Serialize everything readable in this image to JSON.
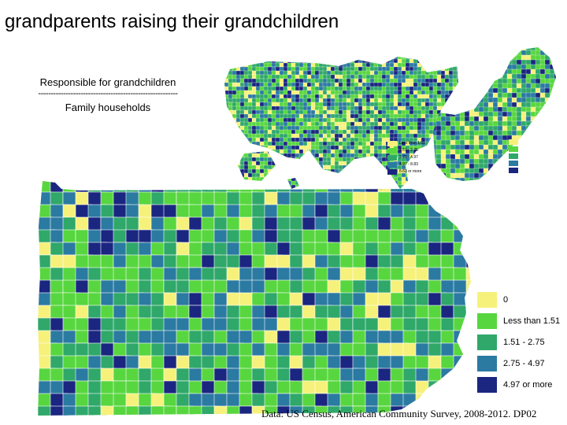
{
  "title": "grandparents raising their grandchildren",
  "ratio": {
    "numerator": "Responsible for grandchildren",
    "denominator": "Family households"
  },
  "colors": {
    "c0": "#f6f17b",
    "c1": "#58d63f",
    "c2": "#2fa86a",
    "c3": "#2b7aa2",
    "c4": "#1a2680",
    "background": "#ffffff"
  },
  "legend_pa": {
    "items": [
      {
        "label": "0",
        "color": "#f6f17b"
      },
      {
        "label": "Less than 1.51",
        "color": "#58d63f"
      },
      {
        "label": "1.51 - 2.75",
        "color": "#2fa86a"
      },
      {
        "label": "2.75 - 4.97",
        "color": "#2b7aa2"
      },
      {
        "label": "4.97 or more",
        "color": "#1a2680"
      }
    ]
  },
  "legend_us": {
    "items": [
      {
        "label": "Less than 1.51",
        "color": "#f6f17b"
      },
      {
        "label": "1.51 - 2.75",
        "color": "#58d63f"
      },
      {
        "label": "2.75 - 4.97",
        "color": "#2fa86a"
      },
      {
        "label": "4.97 - 8.83",
        "color": "#2b7aa2"
      },
      {
        "label": "8.83 or more",
        "color": "#1a2680"
      }
    ]
  },
  "source": "Data: US Census, American Community Survey, 2008-2012. DP02",
  "maps": {
    "pa": {
      "region": "Pennsylvania",
      "icon": "pennsylvania-map"
    },
    "us": {
      "region": "United States",
      "icon": "us-map"
    },
    "ne": {
      "region": "Northeastern United States",
      "icon": "northeast-map"
    }
  }
}
